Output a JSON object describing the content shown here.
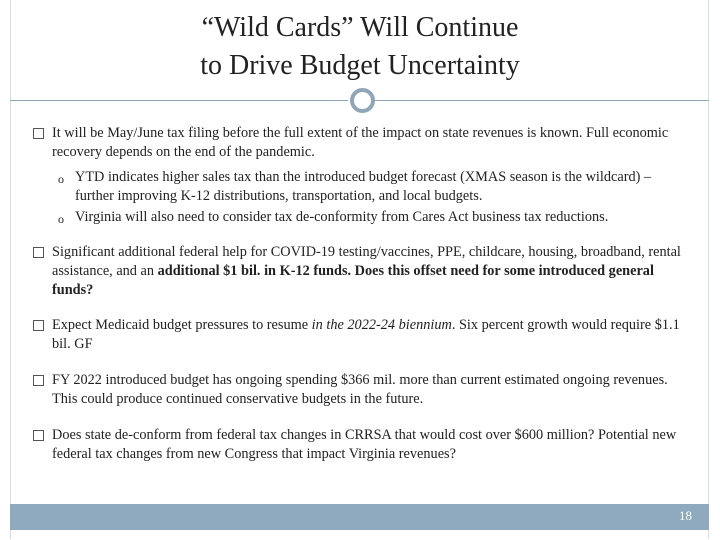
{
  "title": [
    "“Wild Cards” Will Continue",
    "to Drive Budget Uncertainty"
  ],
  "bullets": [
    {
      "parts": [
        "It will be May/June tax filing before the full extent of the impact on state revenues is known. Full economic recovery depends on the end of the pandemic."
      ],
      "sub": [
        "YTD indicates higher sales tax than the introduced budget forecast (XMAS season is the wildcard) – further improving K-12 distributions, transportation, and local budgets.",
        "Virginia will also need to consider tax de-conformity from Cares Act business tax reductions."
      ]
    },
    {
      "parts": [
        "Significant additional federal help for COVID-19 testing/vaccines, PPE, childcare, housing, broadband, rental assistance, and an ",
        "additional $1 bil. in K-12 funds. Does this offset need for some introduced general funds?"
      ]
    },
    {
      "parts": [
        "Expect Medicaid budget pressures to resume ",
        "in the 2022-24 biennium",
        ". Six percent growth would require $1.1 bil. GF"
      ]
    },
    {
      "parts": [
        "FY 2022 introduced budget has ongoing spending $366 mil. more than current estimated ongoing revenues. This could produce continued conservative budgets in the future."
      ]
    },
    {
      "parts": [
        "Does state de-conform from federal tax changes in CRRSA that would cost over $600 million? Potential new federal tax changes from new Congress that impact Virginia revenues?"
      ]
    }
  ],
  "page_number": "18"
}
